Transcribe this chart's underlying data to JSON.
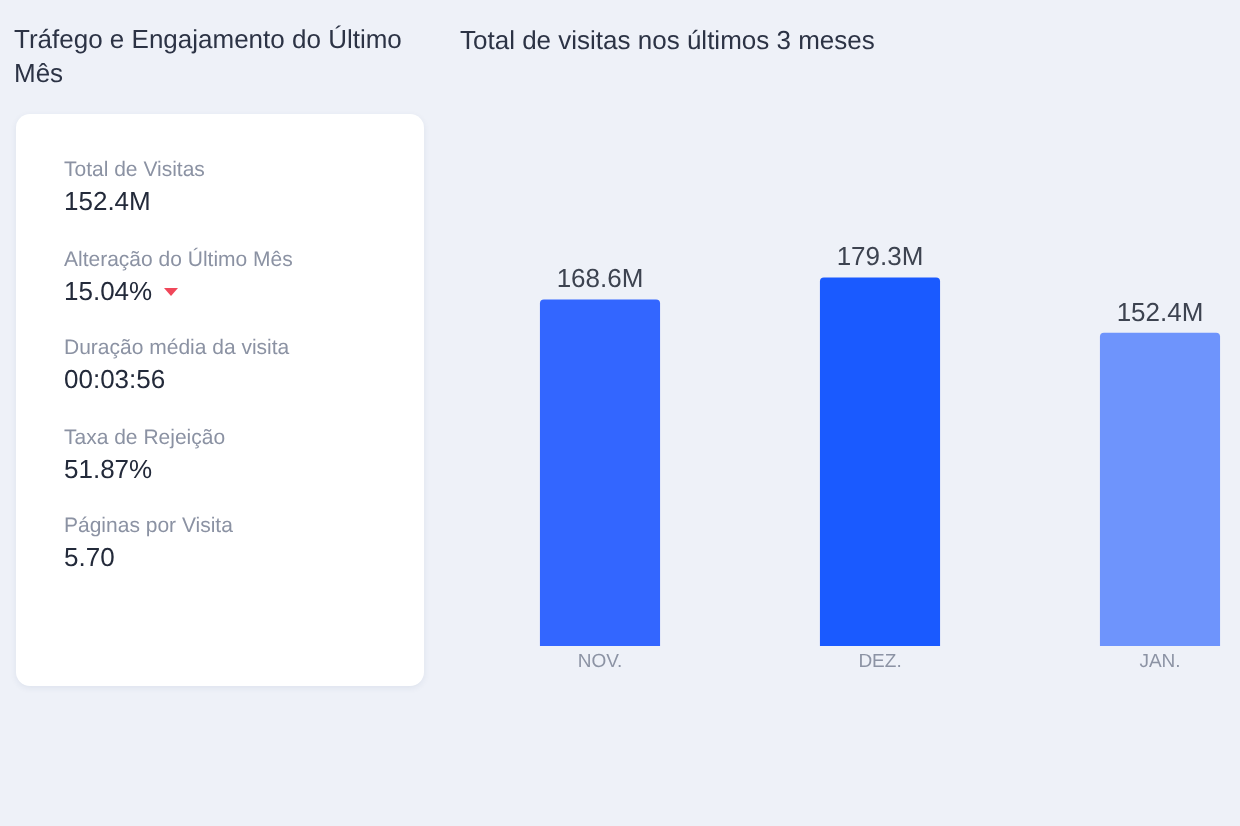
{
  "chart_data": [
    {
      "type": "other",
      "title": "Tráfego e Engajamento do Último Mês",
      "annotations": [
        "Total de Visitas",
        "152.4M",
        "Alteração do Último Mês",
        "15.04%",
        "Duração média da visita",
        "00:03:56",
        "Taxa de Rejeição",
        "51.87%",
        "Páginas por Visita",
        "5.70"
      ]
    },
    {
      "type": "bar",
      "title": "Total de visitas nos últimos 3 meses",
      "categories": [
        "NOV.",
        "DEZ.",
        "JAN."
      ],
      "values": [
        168.6,
        179.3,
        152.4
      ],
      "colors": [
        "#3366ff",
        "#1a5aff",
        "#6e94fc"
      ],
      "value_labels": [
        "168.6M",
        "179.3M",
        "152.4M"
      ],
      "tick_labels": "x"
    }
  ]
}
